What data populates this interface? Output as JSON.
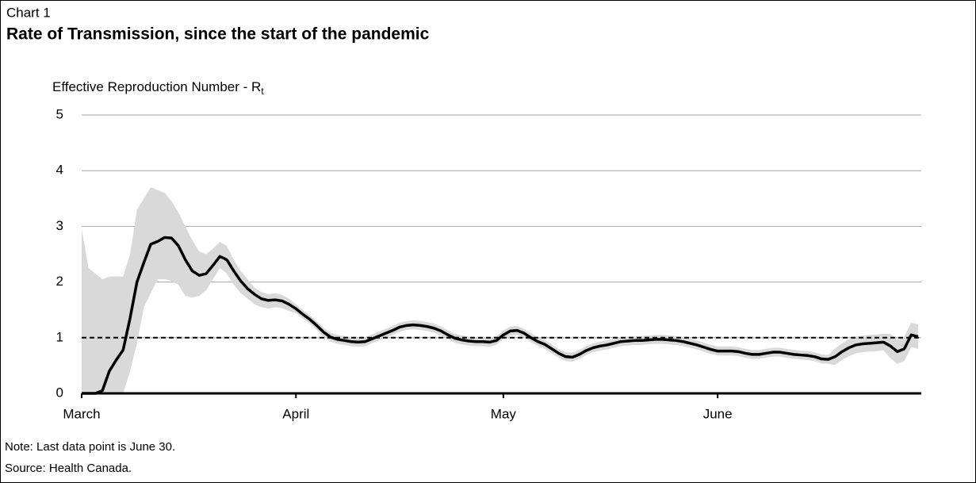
{
  "chart_data": {
    "type": "line",
    "label": "Chart 1",
    "title": "Rate of Transmission, since the start of the pandemic",
    "ylabel": "Effective Reproduction Number - R",
    "ylabel_subscript": "t",
    "notes": [
      "Note: Last data point is June 30.",
      "Source: Health Canada."
    ],
    "categories": [
      "March",
      null,
      null,
      null,
      null,
      null,
      null,
      null,
      null,
      null,
      null,
      null,
      null,
      null,
      null,
      null,
      null,
      null,
      null,
      null,
      null,
      null,
      null,
      null,
      null,
      null,
      null,
      null,
      null,
      null,
      null,
      "April",
      null,
      null,
      null,
      null,
      null,
      null,
      null,
      null,
      null,
      null,
      null,
      null,
      null,
      null,
      null,
      null,
      null,
      null,
      null,
      null,
      null,
      null,
      null,
      null,
      null,
      null,
      null,
      null,
      null,
      "May",
      null,
      null,
      null,
      null,
      null,
      null,
      null,
      null,
      null,
      null,
      null,
      null,
      null,
      null,
      null,
      null,
      null,
      null,
      null,
      null,
      null,
      null,
      null,
      null,
      null,
      null,
      null,
      null,
      null,
      null,
      "June",
      null,
      null,
      null,
      null,
      null,
      null,
      null,
      null,
      null,
      null,
      null,
      null,
      null,
      null,
      null,
      null,
      null,
      null,
      null,
      null,
      null,
      null,
      null,
      null,
      null,
      null,
      null,
      null,
      null
    ],
    "values": [
      0,
      0,
      0,
      0.05,
      0.4,
      0.6,
      0.78,
      1.35,
      2.0,
      2.35,
      2.68,
      2.73,
      2.8,
      2.79,
      2.65,
      2.4,
      2.2,
      2.12,
      2.15,
      2.3,
      2.46,
      2.4,
      2.2,
      2.02,
      1.88,
      1.78,
      1.7,
      1.67,
      1.68,
      1.66,
      1.6,
      1.52,
      1.42,
      1.33,
      1.22,
      1.1,
      1.01,
      0.97,
      0.95,
      0.93,
      0.92,
      0.93,
      0.98,
      1.03,
      1.08,
      1.13,
      1.19,
      1.22,
      1.23,
      1.22,
      1.2,
      1.17,
      1.12,
      1.05,
      0.99,
      0.96,
      0.94,
      0.93,
      0.93,
      0.92,
      0.95,
      1.05,
      1.12,
      1.13,
      1.08,
      1.0,
      0.93,
      0.88,
      0.8,
      0.72,
      0.66,
      0.65,
      0.7,
      0.77,
      0.82,
      0.85,
      0.87,
      0.9,
      0.93,
      0.94,
      0.95,
      0.95,
      0.96,
      0.97,
      0.97,
      0.96,
      0.95,
      0.93,
      0.9,
      0.87,
      0.83,
      0.79,
      0.76,
      0.76,
      0.76,
      0.75,
      0.72,
      0.7,
      0.7,
      0.72,
      0.74,
      0.74,
      0.72,
      0.7,
      0.69,
      0.68,
      0.66,
      0.62,
      0.61,
      0.66,
      0.75,
      0.82,
      0.87,
      0.89,
      0.9,
      0.91,
      0.92,
      0.85,
      0.75,
      0.8,
      1.05,
      1.02
    ],
    "color": "#000000",
    "band_upper": [
      2.95,
      2.25,
      2.15,
      2.05,
      2.1,
      2.1,
      2.1,
      2.5,
      3.3,
      3.5,
      3.7,
      3.65,
      3.6,
      3.45,
      3.25,
      3.0,
      2.75,
      2.55,
      2.5,
      2.6,
      2.72,
      2.65,
      2.4,
      2.2,
      2.05,
      1.9,
      1.82,
      1.78,
      1.8,
      1.77,
      1.7,
      1.6,
      1.5,
      1.41,
      1.3,
      1.18,
      1.09,
      1.05,
      1.03,
      1.01,
      1.0,
      1.01,
      1.06,
      1.11,
      1.16,
      1.21,
      1.27,
      1.3,
      1.31,
      1.3,
      1.28,
      1.25,
      1.2,
      1.13,
      1.07,
      1.04,
      1.02,
      1.01,
      1.01,
      1.0,
      1.03,
      1.13,
      1.2,
      1.21,
      1.16,
      1.08,
      1.01,
      0.96,
      0.88,
      0.8,
      0.74,
      0.73,
      0.78,
      0.85,
      0.9,
      0.93,
      0.95,
      0.98,
      1.01,
      1.02,
      1.03,
      1.03,
      1.04,
      1.05,
      1.05,
      1.04,
      1.03,
      1.01,
      0.98,
      0.95,
      0.91,
      0.87,
      0.84,
      0.84,
      0.84,
      0.83,
      0.8,
      0.78,
      0.78,
      0.8,
      0.82,
      0.82,
      0.8,
      0.78,
      0.77,
      0.76,
      0.74,
      0.7,
      0.69,
      0.81,
      0.9,
      0.97,
      1.02,
      1.04,
      1.05,
      1.06,
      1.07,
      1.07,
      0.97,
      1.02,
      1.27,
      1.24
    ],
    "band_lower": [
      0,
      0,
      0,
      0,
      0,
      0,
      0,
      0.4,
      0.9,
      1.55,
      1.8,
      2.05,
      2.05,
      2.02,
      1.95,
      1.75,
      1.72,
      1.75,
      1.85,
      2.05,
      2.25,
      2.15,
      1.95,
      1.8,
      1.7,
      1.6,
      1.55,
      1.52,
      1.55,
      1.53,
      1.48,
      1.44,
      1.34,
      1.25,
      1.14,
      1.02,
      0.93,
      0.89,
      0.87,
      0.85,
      0.84,
      0.85,
      0.9,
      0.95,
      1.0,
      1.05,
      1.11,
      1.14,
      1.15,
      1.14,
      1.12,
      1.09,
      1.04,
      0.97,
      0.91,
      0.88,
      0.86,
      0.85,
      0.85,
      0.84,
      0.87,
      0.97,
      1.04,
      1.05,
      1.0,
      0.92,
      0.85,
      0.8,
      0.72,
      0.64,
      0.58,
      0.57,
      0.62,
      0.69,
      0.74,
      0.77,
      0.79,
      0.82,
      0.85,
      0.86,
      0.87,
      0.87,
      0.88,
      0.89,
      0.89,
      0.88,
      0.87,
      0.85,
      0.82,
      0.79,
      0.75,
      0.71,
      0.68,
      0.68,
      0.68,
      0.67,
      0.64,
      0.62,
      0.62,
      0.64,
      0.66,
      0.66,
      0.64,
      0.62,
      0.61,
      0.6,
      0.58,
      0.54,
      0.53,
      0.51,
      0.6,
      0.67,
      0.72,
      0.74,
      0.75,
      0.76,
      0.77,
      0.63,
      0.53,
      0.58,
      0.83,
      0.8
    ],
    "band_color": "#d9d9d9",
    "reference_line": 1,
    "ylim": [
      0,
      5
    ],
    "yticks": [
      0,
      1,
      2,
      3,
      4,
      5
    ],
    "grid": true
  }
}
